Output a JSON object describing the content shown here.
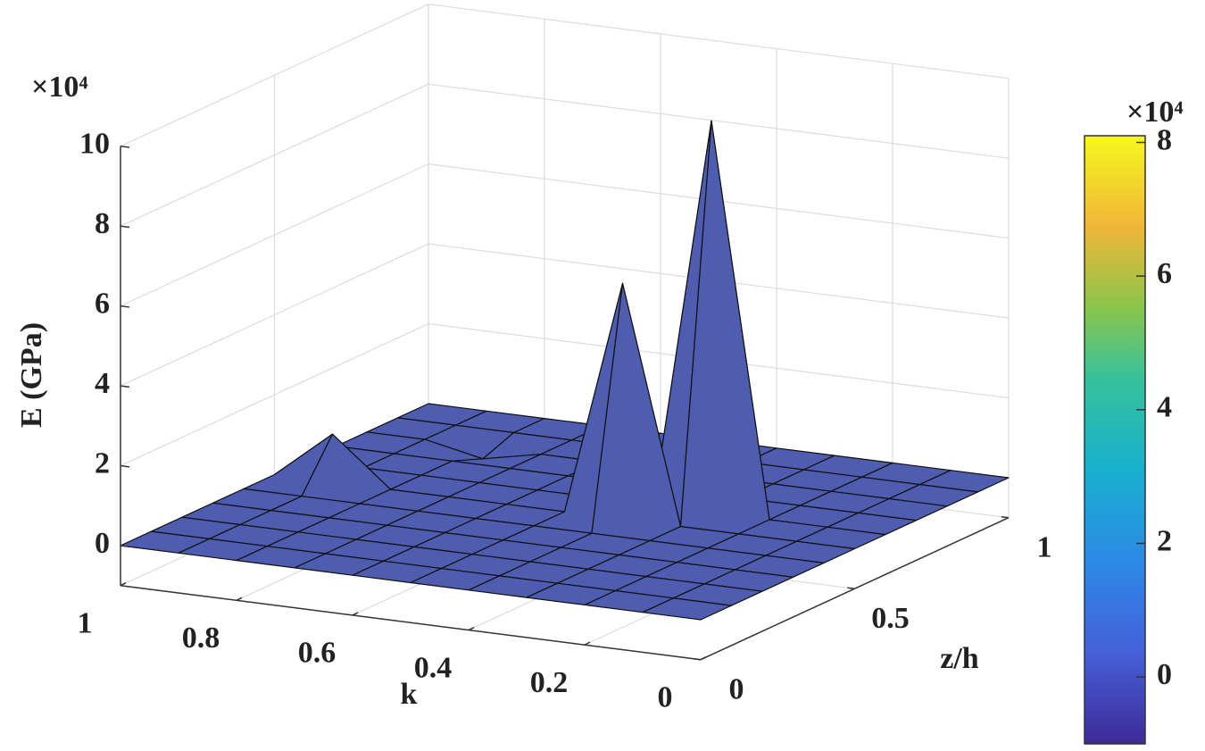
{
  "chart_data": {
    "type": "surface",
    "zlabel": "E (GPa)",
    "xlabel": "k",
    "ylabel": "z/h",
    "z_exponent": "×10⁴",
    "colorbar_exponent": "×10⁴",
    "x": [
      0,
      0.1,
      0.2,
      0.3,
      0.4,
      0.5,
      0.6,
      0.7,
      0.8,
      0.9,
      1
    ],
    "y": [
      0,
      0.1,
      0.2,
      0.3,
      0.4,
      0.5,
      0.6,
      0.7,
      0.8,
      0.9,
      1
    ],
    "values": [
      [
        0,
        0,
        0,
        0,
        0,
        0,
        0,
        0,
        0,
        0,
        0
      ],
      [
        0,
        0,
        0,
        0,
        0,
        0,
        0,
        0,
        0,
        0,
        0
      ],
      [
        0,
        0,
        0,
        0,
        0,
        0,
        0,
        0,
        0,
        0,
        0
      ],
      [
        0,
        0,
        0,
        0,
        0,
        0,
        9.8,
        0,
        0,
        0,
        0
      ],
      [
        0,
        0,
        0,
        0,
        0,
        5.9,
        0,
        0,
        0,
        0,
        0
      ],
      [
        0,
        0,
        0,
        0,
        0,
        0,
        0,
        0,
        0,
        0,
        0
      ],
      [
        0,
        0,
        0,
        0,
        0,
        0,
        0,
        0,
        0,
        0,
        0
      ],
      [
        0,
        0,
        0,
        0,
        0,
        0,
        0,
        0,
        0,
        0,
        0
      ],
      [
        0,
        0,
        0,
        0,
        0,
        0,
        0,
        0,
        -0.3,
        0,
        0
      ],
      [
        0,
        0,
        0,
        0,
        0,
        1.2,
        0,
        0,
        0,
        0,
        0
      ],
      [
        0,
        0,
        0,
        0,
        0,
        0,
        0,
        0,
        0,
        0,
        0
      ]
    ],
    "color": "#4e5db0",
    "xlim": [
      0,
      1
    ],
    "ylim": [
      0,
      1
    ],
    "zlim": [
      -1,
      10
    ],
    "xticks": [
      0,
      0.2,
      0.4,
      0.6,
      0.8,
      1
    ],
    "yticks": [
      0,
      0.5,
      1
    ],
    "zticks": [
      0,
      2,
      4,
      6,
      8,
      10
    ],
    "grid": true,
    "clim": [
      -1,
      8.1
    ],
    "cticks": [
      0,
      2,
      4,
      6,
      8
    ]
  }
}
